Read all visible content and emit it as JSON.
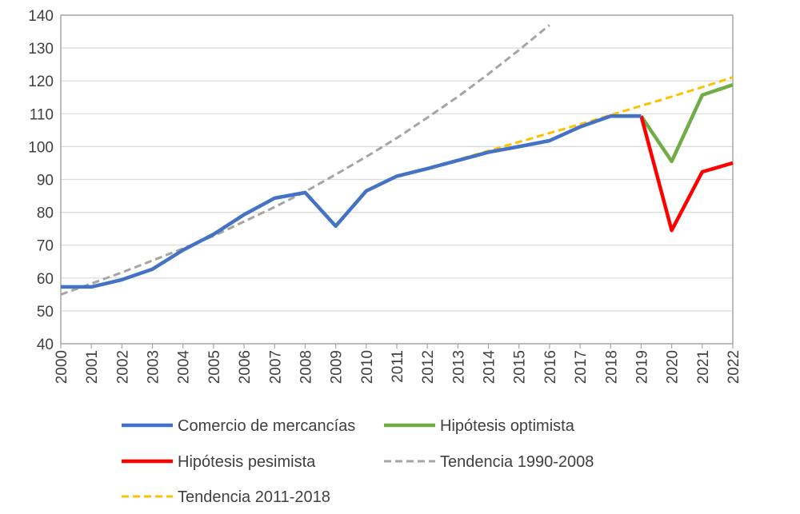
{
  "chart_data": {
    "type": "line",
    "title": "",
    "xlabel": "",
    "ylabel": "",
    "ylim": [
      40,
      140
    ],
    "yticks": [
      40,
      50,
      60,
      70,
      80,
      90,
      100,
      110,
      120,
      130,
      140
    ],
    "categories": [
      "2000",
      "2001",
      "2002",
      "2003",
      "2004",
      "2005",
      "2006",
      "2007",
      "2008",
      "2009",
      "2010",
      "2011",
      "2012",
      "2013",
      "2014",
      "2015",
      "2016",
      "2017",
      "2018",
      "2019",
      "2020",
      "2021",
      "2022"
    ],
    "grid": true,
    "legend_position": "bottom",
    "series": [
      {
        "name": "Comercio de mercancías",
        "color": "#4472C4",
        "dash": "solid",
        "points": [
          [
            "2000",
            57.3
          ],
          [
            "2001",
            57.3
          ],
          [
            "2002",
            59.5
          ],
          [
            "2003",
            62.7
          ],
          [
            "2004",
            68.5
          ],
          [
            "2005",
            73.3
          ],
          [
            "2006",
            79.3
          ],
          [
            "2007",
            84.3
          ],
          [
            "2008",
            86.0
          ],
          [
            "2009",
            75.8
          ],
          [
            "2010",
            86.5
          ],
          [
            "2011",
            91.0
          ],
          [
            "2012",
            93.3
          ],
          [
            "2013",
            95.8
          ],
          [
            "2014",
            98.3
          ],
          [
            "2015",
            100.0
          ],
          [
            "2016",
            101.8
          ],
          [
            "2017",
            106.0
          ],
          [
            "2018",
            109.3
          ],
          [
            "2019",
            109.3
          ]
        ]
      },
      {
        "name": "Hipótesis optimista",
        "color": "#70AD47",
        "dash": "solid",
        "points": [
          [
            "2019",
            109.3
          ],
          [
            "2020",
            95.5
          ],
          [
            "2021",
            115.7
          ],
          [
            "2022",
            118.8
          ]
        ]
      },
      {
        "name": "Hipótesis pesimista",
        "color": "#FF0000",
        "dash": "solid",
        "points": [
          [
            "2019",
            109.3
          ],
          [
            "2020",
            74.5
          ],
          [
            "2021",
            92.3
          ],
          [
            "2022",
            95.0
          ]
        ]
      },
      {
        "name": "Tendencia 1990-2008",
        "color": "#A5A5A5",
        "dash": "dashed",
        "points": [
          [
            "2000",
            55.0
          ],
          [
            "2001",
            58.3
          ],
          [
            "2002",
            61.7
          ],
          [
            "2003",
            65.3
          ],
          [
            "2004",
            69.0
          ],
          [
            "2005",
            72.8
          ],
          [
            "2006",
            77.2
          ],
          [
            "2007",
            81.6
          ],
          [
            "2008",
            86.3
          ],
          [
            "2009",
            91.5
          ],
          [
            "2010",
            96.9
          ],
          [
            "2011",
            102.6
          ],
          [
            "2012",
            108.8
          ],
          [
            "2013",
            115.2
          ],
          [
            "2014",
            122.1
          ],
          [
            "2015",
            129.4
          ],
          [
            "2016",
            137.0
          ]
        ]
      },
      {
        "name": "Tendencia 2011-2018",
        "color": "#FFC000",
        "dash": "dashed",
        "points": [
          [
            "2011",
            90.8
          ],
          [
            "2012",
            93.4
          ],
          [
            "2013",
            96.0
          ],
          [
            "2014",
            98.7
          ],
          [
            "2015",
            101.4
          ],
          [
            "2016",
            104.1
          ],
          [
            "2017",
            106.8
          ],
          [
            "2018",
            109.6
          ],
          [
            "2019",
            112.4
          ],
          [
            "2020",
            115.2
          ],
          [
            "2021",
            118.1
          ],
          [
            "2022",
            121.1
          ]
        ]
      }
    ]
  }
}
